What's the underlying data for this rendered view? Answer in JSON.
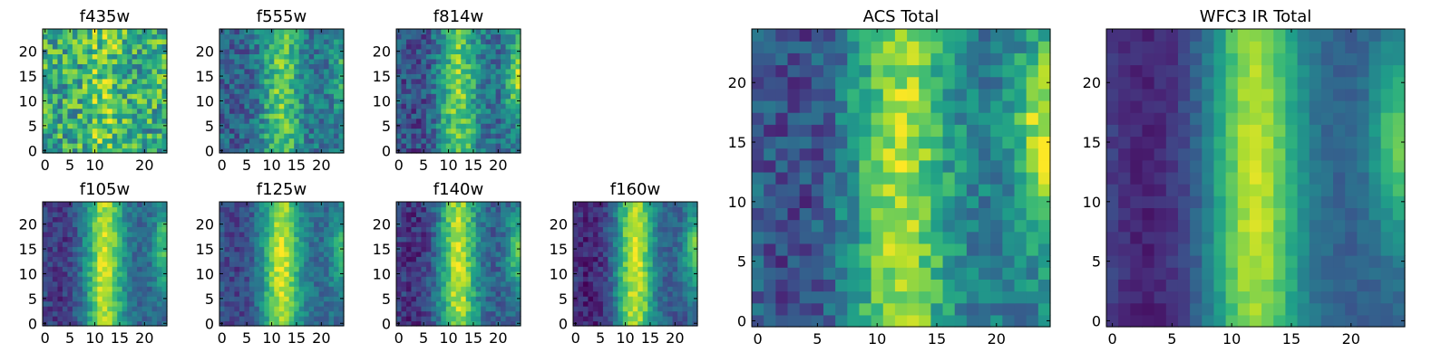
{
  "chart_data": [
    {
      "type": "heatmap",
      "title": "f435w",
      "xticks": [
        0,
        5,
        10,
        20
      ],
      "yticks": [
        0,
        5,
        10,
        15,
        20
      ],
      "xlim": [
        0,
        24
      ],
      "ylim": [
        0,
        24
      ],
      "grid": false,
      "colormap": "viridis"
    },
    {
      "type": "heatmap",
      "title": "f555w",
      "xticks": [
        0,
        5,
        10,
        15,
        20
      ],
      "yticks": [
        0,
        5,
        10,
        15,
        20
      ],
      "xlim": [
        0,
        24
      ],
      "ylim": [
        0,
        24
      ],
      "grid": false,
      "colormap": "viridis"
    },
    {
      "type": "heatmap",
      "title": "f814w",
      "xticks": [
        0,
        5,
        10,
        15,
        20
      ],
      "yticks": [
        0,
        5,
        10,
        15,
        20
      ],
      "xlim": [
        0,
        24
      ],
      "ylim": [
        0,
        24
      ],
      "grid": false,
      "colormap": "viridis"
    },
    {
      "type": "heatmap",
      "title": "f105w",
      "xticks": [
        0,
        5,
        10,
        15,
        20
      ],
      "yticks": [
        0,
        5,
        10,
        15,
        20
      ],
      "xlim": [
        0,
        24
      ],
      "ylim": [
        0,
        24
      ],
      "grid": false,
      "colormap": "viridis"
    },
    {
      "type": "heatmap",
      "title": "f125w",
      "xticks": [
        0,
        5,
        10,
        15,
        20
      ],
      "yticks": [
        0,
        5,
        10,
        15,
        20
      ],
      "xlim": [
        0,
        24
      ],
      "ylim": [
        0,
        24
      ],
      "grid": false,
      "colormap": "viridis"
    },
    {
      "type": "heatmap",
      "title": "f140w",
      "xticks": [
        0,
        5,
        10,
        15,
        20
      ],
      "yticks": [
        0,
        5,
        10,
        15,
        20
      ],
      "xlim": [
        0,
        24
      ],
      "ylim": [
        0,
        24
      ],
      "grid": false,
      "colormap": "viridis"
    },
    {
      "type": "heatmap",
      "title": "f160w",
      "xticks": [
        0,
        5,
        10,
        15,
        20
      ],
      "yticks": [
        0,
        5,
        10,
        15,
        20
      ],
      "xlim": [
        0,
        24
      ],
      "ylim": [
        0,
        24
      ],
      "grid": false,
      "colormap": "viridis"
    },
    {
      "type": "heatmap",
      "title": "ACS Total",
      "xticks": [
        0,
        5,
        10,
        15,
        20
      ],
      "yticks": [
        0,
        5,
        10,
        15,
        20
      ],
      "xlim": [
        0,
        24
      ],
      "ylim": [
        0,
        24
      ],
      "grid": false,
      "colormap": "viridis"
    },
    {
      "type": "heatmap",
      "title": "WFC3 IR Total",
      "xticks": [
        0,
        5,
        10,
        15,
        20
      ],
      "yticks": [
        0,
        5,
        10,
        15,
        20
      ],
      "xlim": [
        0,
        24
      ],
      "ylim": [
        0,
        24
      ],
      "grid": false,
      "colormap": "viridis"
    }
  ]
}
